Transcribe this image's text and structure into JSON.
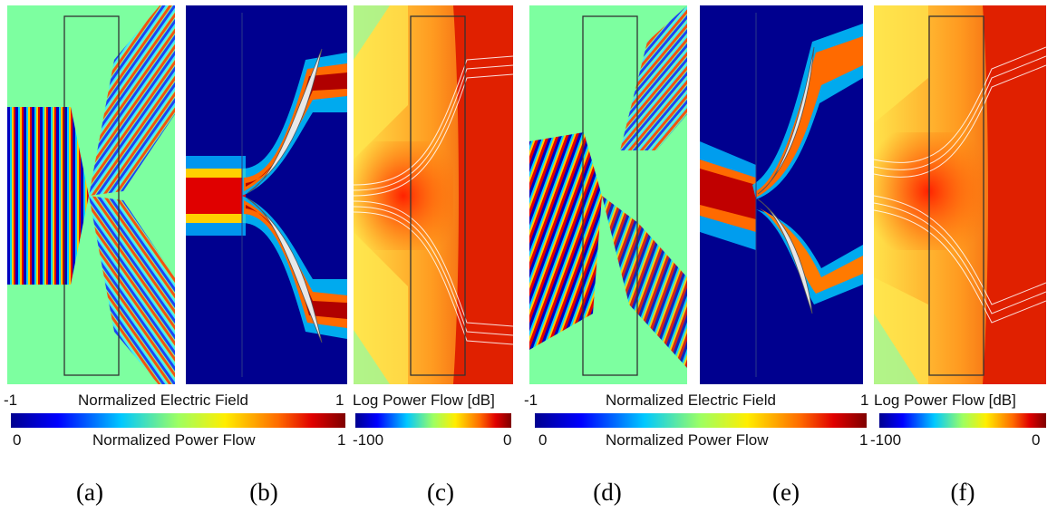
{
  "colorbars": [
    {
      "top_label": "Normalized Electric Field",
      "top_min": "-1",
      "top_max": "1",
      "bottom_label": "Normalized Power Flow",
      "bottom_min": "0",
      "bottom_max": "1"
    },
    {
      "title": "Log Power Flow [dB]",
      "min": "-100",
      "max": "0"
    },
    {
      "top_label": "Normalized Electric Field",
      "top_min": "-1",
      "top_max": "1",
      "bottom_label": "Normalized Power Flow",
      "bottom_min": "0",
      "bottom_max": "1"
    },
    {
      "title": "Log Power Flow [dB]",
      "min": "-100",
      "max": "0"
    }
  ],
  "captions": [
    "(a)",
    "(b)",
    "(c)",
    "(d)",
    "(e)",
    "(f)"
  ],
  "colors": {
    "dark_blue": "#00008f",
    "green_background": "#7dffa0",
    "red": "#e00000",
    "yellow": "#ffee00"
  }
}
